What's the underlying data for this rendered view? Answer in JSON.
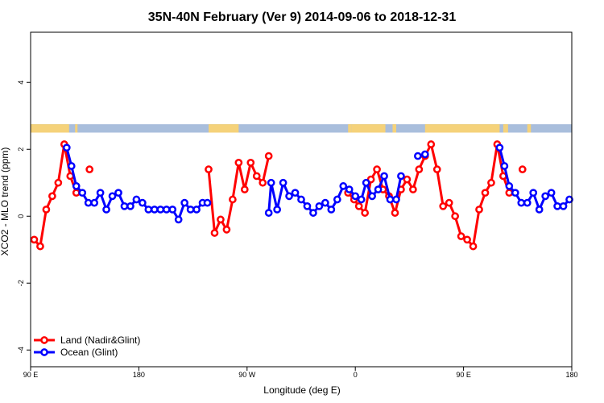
{
  "chart_data": {
    "type": "line",
    "title": "35N-40N February (Ver 9)   2014-09-06 to 2018-12-31",
    "xlabel": "Longitude (deg E)",
    "ylabel": "XCO2 - MLO trend (ppm)",
    "xlim": [
      90,
      540
    ],
    "ylim": [
      -4.5,
      5.5
    ],
    "x_ticks": [
      {
        "value": 90,
        "label": "90 E"
      },
      {
        "value": 180,
        "label": "180"
      },
      {
        "value": 270,
        "label": "90 W"
      },
      {
        "value": 360,
        "label": "0"
      },
      {
        "value": 450,
        "label": "90 E"
      },
      {
        "value": 540,
        "label": "180"
      }
    ],
    "y_ticks": [
      {
        "value": -4,
        "label": "-4"
      },
      {
        "value": -2,
        "label": "-2"
      },
      {
        "value": 0,
        "label": "0"
      },
      {
        "value": 2,
        "label": "2"
      },
      {
        "value": 4,
        "label": "4"
      }
    ],
    "land_ocean_band": {
      "y_range": [
        2.5,
        2.75
      ],
      "land_color": "#f5d27a",
      "ocean_color": "#a9bedc",
      "land_intervals": [
        [
          90,
          122
        ],
        [
          127,
          129
        ],
        [
          238,
          263
        ],
        [
          354,
          357
        ],
        [
          357,
          385
        ],
        [
          391,
          394
        ],
        [
          418,
          480
        ],
        [
          483,
          487
        ],
        [
          503,
          506
        ]
      ]
    },
    "legend_position": "bottom-left",
    "series": [
      {
        "name": "Land (Nadir&Glint)",
        "color": "#ff0000",
        "points": [
          [
            [
              93,
              -0.7
            ],
            [
              98,
              -0.9
            ],
            [
              103,
              0.2
            ],
            [
              108,
              0.6
            ],
            [
              113,
              1.0
            ],
            [
              118,
              2.15
            ],
            [
              123,
              1.2
            ],
            [
              128,
              0.7
            ]
          ],
          [
            [
              139,
              1.4
            ]
          ],
          [
            [
              238,
              1.4
            ],
            [
              243,
              -0.5
            ],
            [
              248,
              -0.1
            ],
            [
              253,
              -0.4
            ],
            [
              258,
              0.5
            ],
            [
              263,
              1.6
            ],
            [
              268,
              0.8
            ],
            [
              273,
              1.6
            ],
            [
              278,
              1.2
            ],
            [
              283,
              1.0
            ],
            [
              288,
              1.8
            ]
          ],
          [
            [
              354,
              0.7
            ],
            [
              359,
              0.5
            ],
            [
              363,
              0.3
            ],
            [
              368,
              0.1
            ],
            [
              373,
              1.1
            ],
            [
              378,
              1.4
            ],
            [
              383,
              0.8
            ],
            [
              388,
              0.6
            ],
            [
              393,
              0.1
            ],
            [
              398,
              0.8
            ],
            [
              403,
              1.1
            ],
            [
              408,
              0.8
            ],
            [
              413,
              1.4
            ],
            [
              418,
              1.8
            ],
            [
              423,
              2.15
            ],
            [
              428,
              1.4
            ],
            [
              433,
              0.3
            ],
            [
              438,
              0.4
            ],
            [
              443,
              0.0
            ],
            [
              448,
              -0.6
            ],
            [
              453,
              -0.7
            ],
            [
              458,
              -0.9
            ],
            [
              463,
              0.2
            ],
            [
              468,
              0.7
            ],
            [
              473,
              1.0
            ],
            [
              478,
              2.15
            ],
            [
              483,
              1.2
            ],
            [
              488,
              0.7
            ]
          ],
          [
            [
              499,
              1.4
            ]
          ]
        ]
      },
      {
        "name": "Ocean (Glint)",
        "color": "#0000ff",
        "points": [
          [
            [
              120,
              2.05
            ],
            [
              124,
              1.5
            ],
            [
              128,
              0.9
            ],
            [
              133,
              0.7
            ],
            [
              138,
              0.4
            ],
            [
              143,
              0.4
            ],
            [
              148,
              0.7
            ],
            [
              153,
              0.2
            ],
            [
              158,
              0.6
            ],
            [
              163,
              0.7
            ],
            [
              168,
              0.3
            ],
            [
              173,
              0.3
            ],
            [
              178,
              0.5
            ],
            [
              183,
              0.4
            ],
            [
              188,
              0.2
            ],
            [
              193,
              0.2
            ],
            [
              198,
              0.2
            ],
            [
              203,
              0.2
            ],
            [
              208,
              0.2
            ],
            [
              213,
              -0.1
            ],
            [
              218,
              0.4
            ],
            [
              223,
              0.2
            ],
            [
              228,
              0.2
            ],
            [
              233,
              0.4
            ],
            [
              237,
              0.4
            ]
          ],
          [
            [
              288,
              0.1
            ],
            [
              290,
              1.0
            ],
            [
              295,
              0.2
            ],
            [
              300,
              1.0
            ],
            [
              305,
              0.6
            ],
            [
              310,
              0.7
            ],
            [
              315,
              0.5
            ],
            [
              320,
              0.3
            ],
            [
              325,
              0.1
            ],
            [
              330,
              0.3
            ],
            [
              335,
              0.4
            ],
            [
              340,
              0.2
            ],
            [
              345,
              0.5
            ],
            [
              350,
              0.9
            ],
            [
              355,
              0.8
            ],
            [
              360,
              0.6
            ],
            [
              365,
              0.5
            ],
            [
              369,
              1.0
            ],
            [
              374,
              0.6
            ],
            [
              379,
              0.8
            ],
            [
              384,
              1.2
            ],
            [
              389,
              0.5
            ],
            [
              394,
              0.5
            ],
            [
              398,
              1.2
            ]
          ],
          [
            [
              412,
              1.8
            ],
            [
              418,
              1.85
            ]
          ],
          [
            [
              480,
              2.05
            ],
            [
              484,
              1.5
            ],
            [
              488,
              0.9
            ],
            [
              493,
              0.7
            ],
            [
              498,
              0.4
            ],
            [
              503,
              0.4
            ],
            [
              508,
              0.7
            ],
            [
              513,
              0.2
            ],
            [
              518,
              0.6
            ],
            [
              523,
              0.7
            ],
            [
              528,
              0.3
            ],
            [
              533,
              0.3
            ],
            [
              538,
              0.5
            ]
          ]
        ]
      }
    ]
  }
}
